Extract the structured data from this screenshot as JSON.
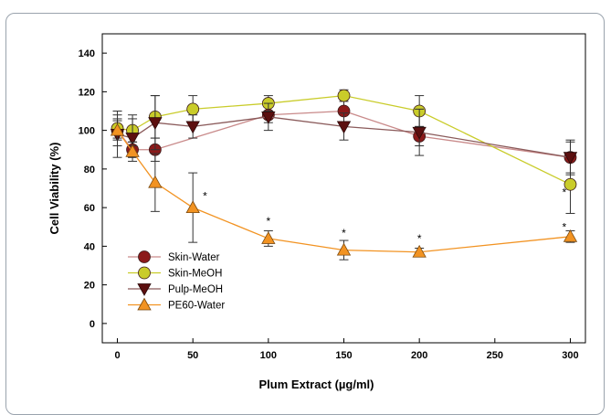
{
  "chart_data": {
    "type": "line",
    "title": "",
    "xlabel": "Plum Extract (µg/ml)",
    "ylabel": "Cell Viability (%)",
    "xlim": [
      -10,
      310
    ],
    "ylim": [
      -10,
      150
    ],
    "x_ticks": [
      0,
      50,
      100,
      150,
      200,
      250,
      300
    ],
    "y_ticks": [
      0,
      20,
      40,
      60,
      80,
      100,
      120,
      140
    ],
    "grid": false,
    "legend_position": "lower-left",
    "series": [
      {
        "name": "Skin-Water",
        "marker": "circle",
        "color": "#8b1a1a",
        "line_color": "#c98a8a",
        "x": [
          0,
          10,
          25,
          100,
          150,
          200,
          300
        ],
        "y": [
          100,
          90,
          90,
          108,
          110,
          97,
          86
        ],
        "err": [
          8,
          4,
          6,
          4,
          6,
          5,
          9
        ]
      },
      {
        "name": "Skin-MeOH",
        "marker": "circle",
        "color": "#c9cc2a",
        "line_color": "#c9cc2a",
        "x": [
          0,
          10,
          25,
          50,
          100,
          150,
          200,
          300
        ],
        "y": [
          101,
          100,
          107,
          111,
          114,
          118,
          110,
          72
        ],
        "err": [
          5,
          8,
          11,
          7,
          4,
          3,
          8,
          15
        ]
      },
      {
        "name": "Pulp-MeOH",
        "marker": "triangle-down",
        "color": "#5c0f0f",
        "line_color": "#8a5a5a",
        "x": [
          0,
          10,
          25,
          50,
          100,
          150,
          200,
          300
        ],
        "y": [
          98,
          96,
          104,
          102,
          107,
          102,
          99,
          86
        ],
        "err": [
          12,
          10,
          14,
          6,
          7,
          7,
          12,
          8
        ]
      },
      {
        "name": "PE60-Water",
        "marker": "triangle-up",
        "color": "#f29322",
        "line_color": "#f29322",
        "x": [
          0,
          10,
          25,
          50,
          100,
          150,
          200,
          300
        ],
        "y": [
          100,
          89,
          73,
          60,
          44,
          38,
          37,
          45
        ],
        "err": [
          5,
          5,
          15,
          18,
          4,
          5,
          2,
          3
        ]
      }
    ],
    "annotations": [
      {
        "text": "*",
        "x": 58,
        "y": 64
      },
      {
        "text": "*",
        "x": 100,
        "y": 51
      },
      {
        "text": "*",
        "x": 150,
        "y": 45
      },
      {
        "text": "*",
        "x": 200,
        "y": 42
      },
      {
        "text": "*",
        "x": 296,
        "y": 66
      },
      {
        "text": "*",
        "x": 296,
        "y": 48
      }
    ]
  }
}
